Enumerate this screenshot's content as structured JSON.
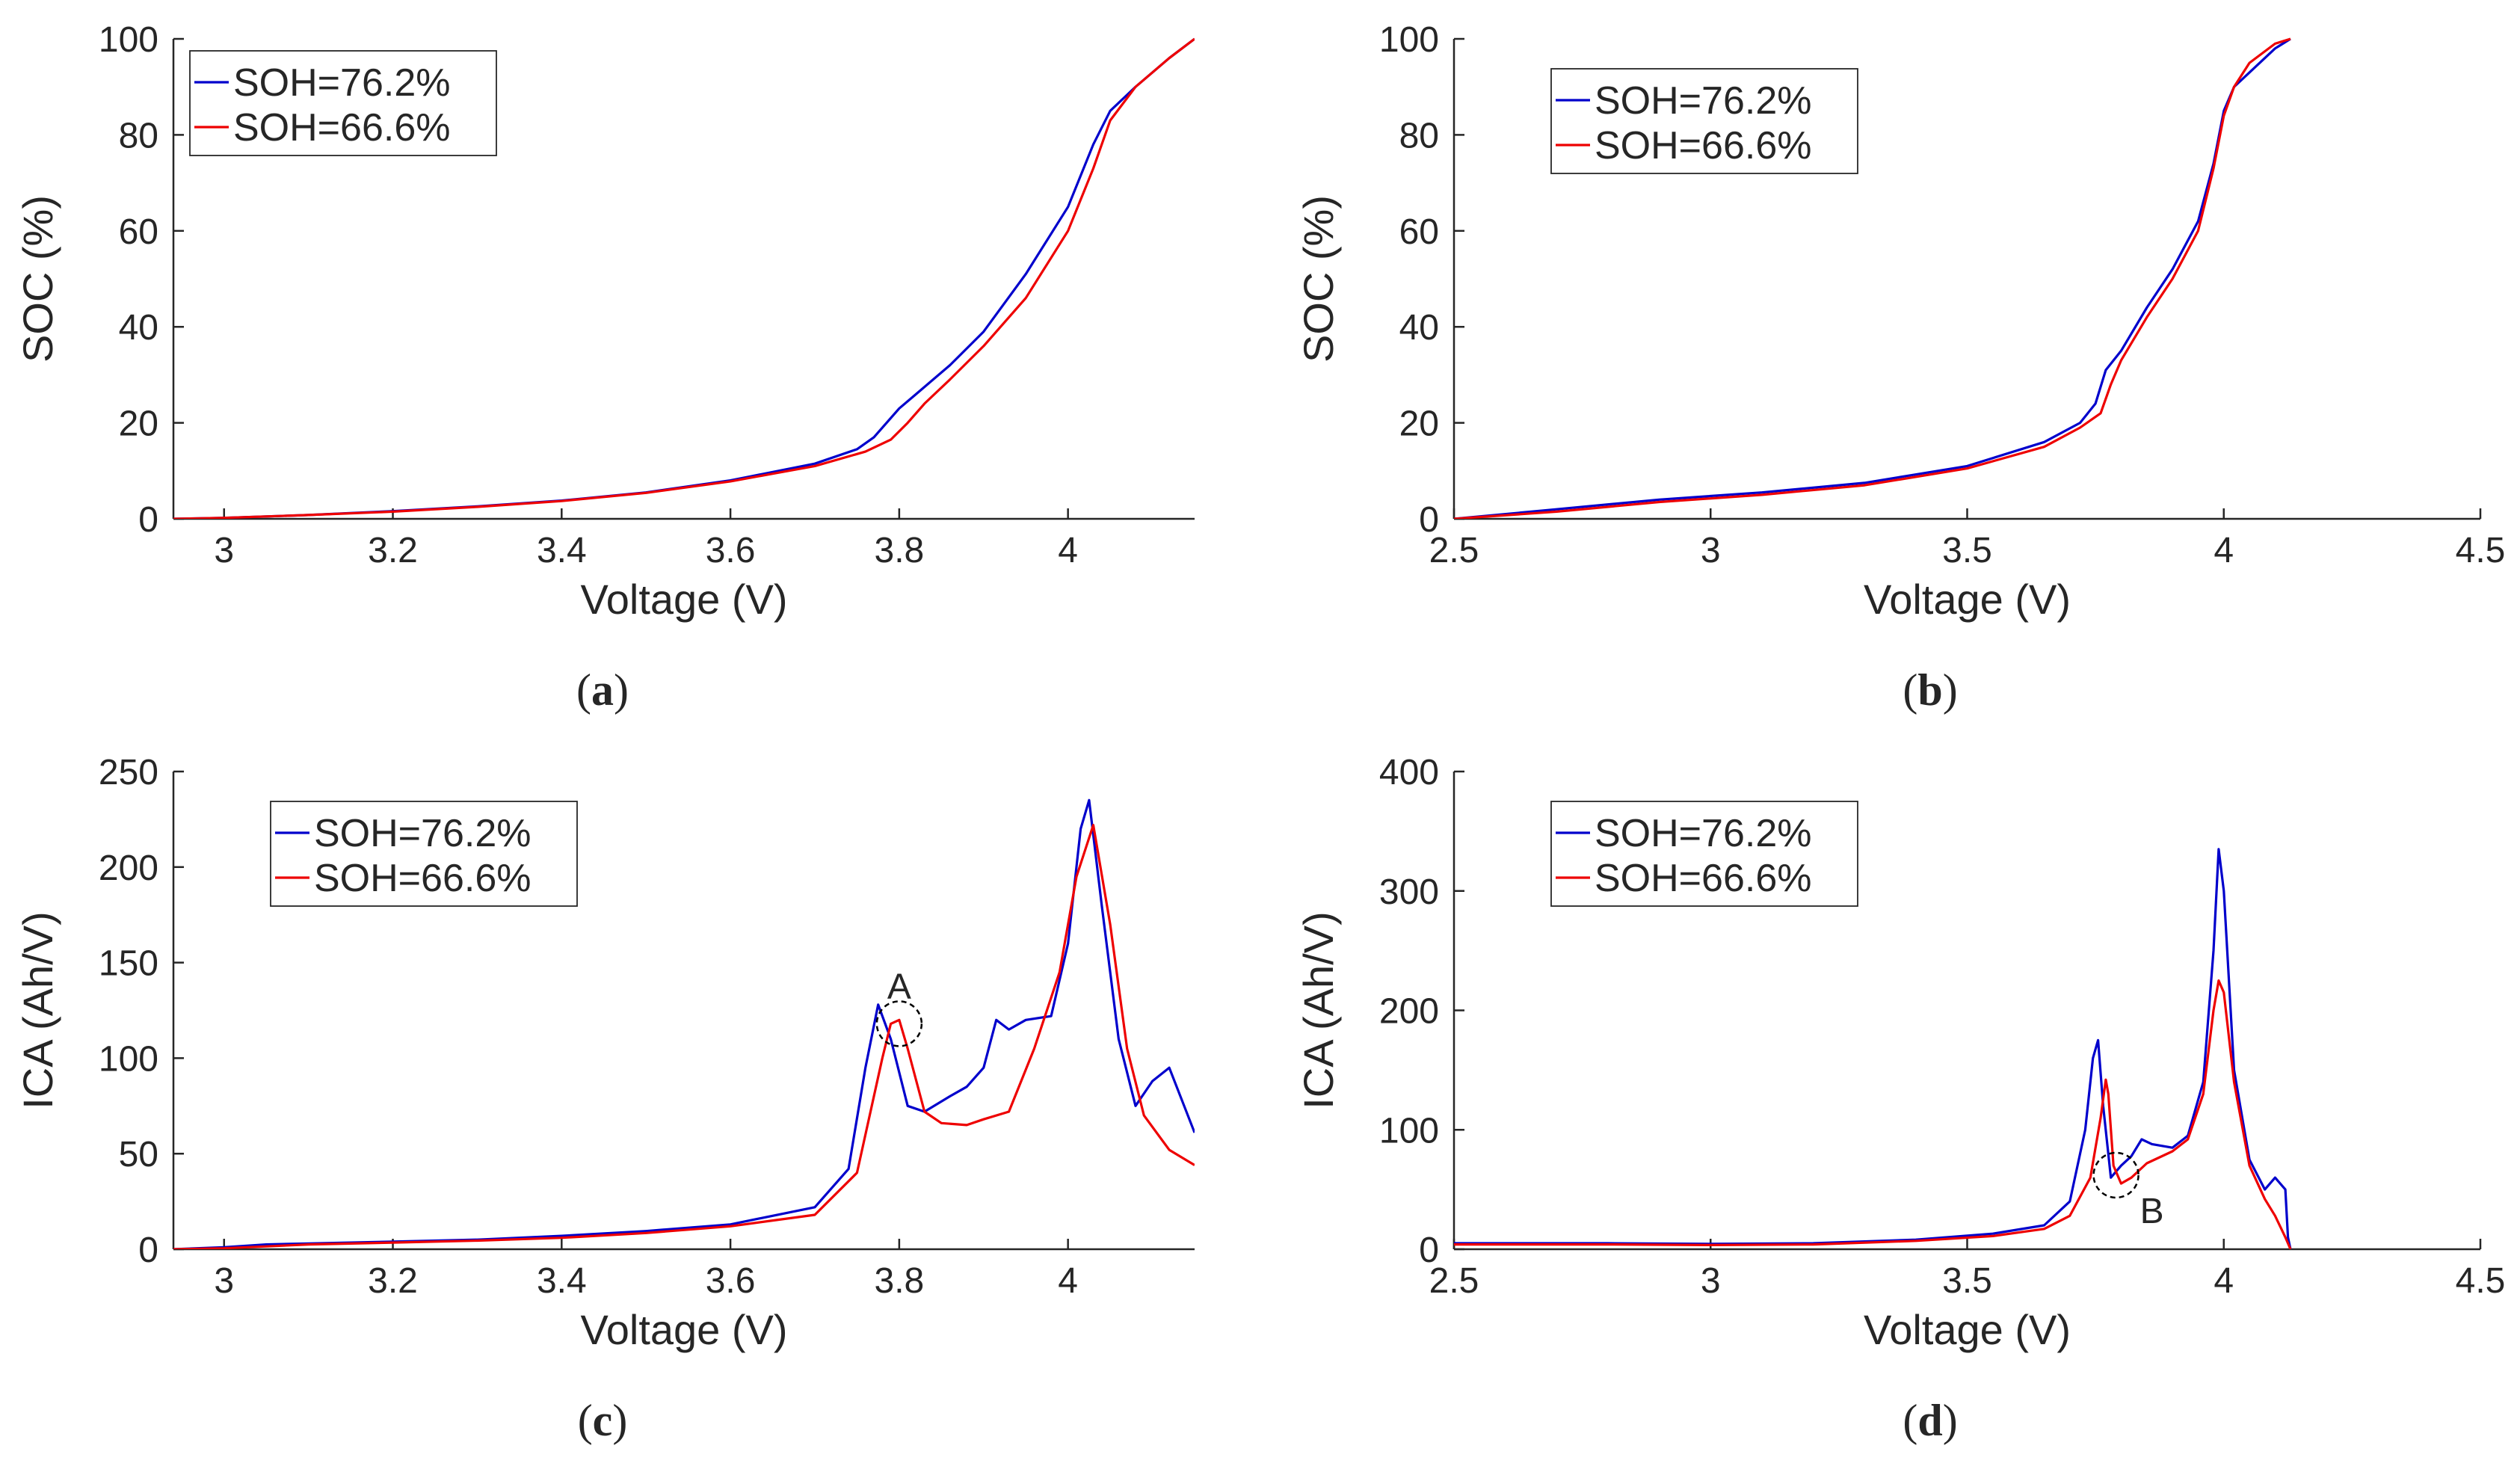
{
  "colors": {
    "series_blue": "#0000cc",
    "series_red": "#ee0000",
    "axis": "#262626",
    "annotation": "#000000"
  },
  "chart_data": [
    {
      "id": "a",
      "type": "line",
      "caption": "a",
      "title": "",
      "xlabel": "Voltage (V)",
      "ylabel": "SOC (%)",
      "xlim": [
        2.94,
        4.15
      ],
      "ylim": [
        0,
        100
      ],
      "xticks": [
        3,
        3.2,
        3.4,
        3.6,
        3.8,
        4
      ],
      "xtick_labels": [
        "3",
        "3.2",
        "3.4",
        "3.6",
        "3.8",
        "4"
      ],
      "yticks": [
        0,
        20,
        40,
        60,
        80,
        100
      ],
      "ytick_labels": [
        "0",
        "20",
        "40",
        "60",
        "80",
        "100"
      ],
      "legend": {
        "position": "top-left",
        "entries": [
          "SOH=76.2%",
          "SOH=66.6%"
        ]
      },
      "annotations": [],
      "series": [
        {
          "name": "SOH=76.2%",
          "color": "blue",
          "x": [
            2.94,
            3.0,
            3.1,
            3.2,
            3.3,
            3.4,
            3.5,
            3.6,
            3.7,
            3.75,
            3.77,
            3.79,
            3.8,
            3.82,
            3.86,
            3.9,
            3.95,
            4.0,
            4.03,
            4.05,
            4.08,
            4.12,
            4.15
          ],
          "y": [
            0,
            0.2,
            0.8,
            1.6,
            2.6,
            3.8,
            5.5,
            8,
            11.5,
            14.5,
            17,
            21,
            23,
            26,
            32,
            39,
            51,
            65,
            78,
            85,
            90,
            96,
            100
          ]
        },
        {
          "name": "SOH=66.6%",
          "color": "red",
          "x": [
            2.94,
            3.0,
            3.1,
            3.2,
            3.3,
            3.4,
            3.5,
            3.6,
            3.7,
            3.76,
            3.79,
            3.81,
            3.83,
            3.86,
            3.9,
            3.95,
            4.0,
            4.03,
            4.05,
            4.08,
            4.12,
            4.15
          ],
          "y": [
            0,
            0.2,
            0.8,
            1.5,
            2.5,
            3.7,
            5.4,
            7.8,
            11,
            14,
            16.5,
            20,
            24,
            29,
            36,
            46,
            60,
            73,
            83,
            90,
            96,
            100
          ]
        }
      ]
    },
    {
      "id": "b",
      "type": "line",
      "caption": "b",
      "title": "",
      "xlabel": "Voltage (V)",
      "ylabel": "SOC (%)",
      "xlim": [
        2.5,
        4.5
      ],
      "ylim": [
        0,
        100
      ],
      "xticks": [
        2.5,
        3,
        3.5,
        4,
        4.5
      ],
      "xtick_labels": [
        "2.5",
        "3",
        "3.5",
        "4",
        "4.5"
      ],
      "yticks": [
        0,
        20,
        40,
        60,
        80,
        100
      ],
      "ytick_labels": [
        "0",
        "20",
        "40",
        "60",
        "80",
        "100"
      ],
      "legend": {
        "position": "top-left",
        "entries": [
          "SOH=76.2%",
          "SOH=66.6%"
        ]
      },
      "annotations": [],
      "series": [
        {
          "name": "SOH=76.2%",
          "color": "blue",
          "x": [
            2.5,
            2.7,
            2.9,
            3.1,
            3.3,
            3.5,
            3.65,
            3.72,
            3.75,
            3.77,
            3.8,
            3.85,
            3.9,
            3.95,
            3.98,
            4.0,
            4.02,
            4.05,
            4.1,
            4.13
          ],
          "y": [
            0,
            2,
            4,
            5.5,
            7.5,
            11,
            16,
            20,
            24,
            31,
            35,
            44,
            52,
            62,
            74,
            85,
            90,
            93,
            98,
            100
          ]
        },
        {
          "name": "SOH=66.6%",
          "color": "red",
          "x": [
            2.5,
            2.7,
            2.9,
            3.1,
            3.3,
            3.5,
            3.65,
            3.72,
            3.76,
            3.78,
            3.8,
            3.85,
            3.9,
            3.95,
            3.98,
            4.0,
            4.02,
            4.05,
            4.1,
            4.13
          ],
          "y": [
            0,
            1.5,
            3.5,
            5,
            7,
            10.5,
            15,
            19,
            22,
            28,
            33,
            42,
            50,
            60,
            73,
            84,
            90,
            95,
            99,
            100
          ]
        }
      ]
    },
    {
      "id": "c",
      "type": "line",
      "caption": "c",
      "title": "",
      "xlabel": "Voltage (V)",
      "ylabel": "ICA (Ah/V)",
      "xlim": [
        2.94,
        4.15
      ],
      "ylim": [
        0,
        250
      ],
      "xticks": [
        3,
        3.2,
        3.4,
        3.6,
        3.8,
        4
      ],
      "xtick_labels": [
        "3",
        "3.2",
        "3.4",
        "3.6",
        "3.8",
        "4"
      ],
      "yticks": [
        0,
        50,
        100,
        150,
        200,
        250
      ],
      "ytick_labels": [
        "0",
        "50",
        "100",
        "150",
        "200",
        "250"
      ],
      "legend": {
        "position": "top-left",
        "entries": [
          "SOH=76.2%",
          "SOH=66.6%"
        ]
      },
      "annotations": [
        {
          "text": "A",
          "x": 3.8,
          "y": 118,
          "circle": true
        }
      ],
      "series": [
        {
          "name": "SOH=76.2%",
          "color": "blue",
          "x": [
            2.94,
            3.0,
            3.05,
            3.1,
            3.2,
            3.3,
            3.4,
            3.5,
            3.6,
            3.7,
            3.74,
            3.76,
            3.775,
            3.79,
            3.81,
            3.83,
            3.86,
            3.88,
            3.9,
            3.915,
            3.93,
            3.95,
            3.98,
            4.0,
            4.015,
            4.025,
            4.04,
            4.06,
            4.08,
            4.1,
            4.12,
            4.15
          ],
          "y": [
            0,
            1,
            2.5,
            3,
            4,
            5,
            7,
            9.5,
            13,
            22,
            42,
            95,
            128,
            110,
            75,
            72,
            80,
            85,
            95,
            120,
            115,
            120,
            122,
            160,
            220,
            235,
            180,
            110,
            75,
            88,
            95,
            61
          ]
        },
        {
          "name": "SOH=66.6%",
          "color": "red",
          "x": [
            2.94,
            3.0,
            3.05,
            3.1,
            3.2,
            3.3,
            3.4,
            3.5,
            3.6,
            3.7,
            3.75,
            3.78,
            3.79,
            3.8,
            3.81,
            3.83,
            3.85,
            3.88,
            3.9,
            3.93,
            3.96,
            3.99,
            4.01,
            4.03,
            4.05,
            4.07,
            4.09,
            4.12,
            4.15
          ],
          "y": [
            0,
            0.5,
            1.5,
            2.5,
            3.5,
            4.5,
            6,
            8.5,
            12,
            18,
            40,
            100,
            118,
            120,
            105,
            72,
            66,
            65,
            68,
            72,
            105,
            145,
            195,
            222,
            170,
            105,
            70,
            52,
            44
          ]
        }
      ]
    },
    {
      "id": "d",
      "type": "line",
      "caption": "d",
      "title": "",
      "xlabel": "Voltage (V)",
      "ylabel": "ICA (Ah/V)",
      "xlim": [
        2.5,
        4.5
      ],
      "ylim": [
        0,
        400
      ],
      "xticks": [
        2.5,
        3,
        3.5,
        4,
        4.5
      ],
      "xtick_labels": [
        "2.5",
        "3",
        "3.5",
        "4",
        "4.5"
      ],
      "yticks": [
        0,
        100,
        200,
        300,
        400
      ],
      "ytick_labels": [
        "0",
        "100",
        "200",
        "300",
        "400"
      ],
      "legend": {
        "position": "top-left",
        "entries": [
          "SOH=76.2%",
          "SOH=66.6%"
        ]
      },
      "annotations": [
        {
          "text": "B",
          "x": 3.79,
          "y": 62,
          "circle": true
        }
      ],
      "series": [
        {
          "name": "SOH=76.2%",
          "color": "blue",
          "x": [
            2.5,
            2.8,
            3.0,
            3.2,
            3.4,
            3.55,
            3.65,
            3.7,
            3.73,
            3.745,
            3.755,
            3.765,
            3.78,
            3.8,
            3.82,
            3.84,
            3.86,
            3.9,
            3.93,
            3.96,
            3.98,
            3.99,
            4.0,
            4.02,
            4.05,
            4.08,
            4.1,
            4.12,
            4.125,
            4.13
          ],
          "y": [
            5,
            5,
            4.5,
            5,
            8,
            13,
            20,
            40,
            100,
            160,
            175,
            120,
            60,
            70,
            78,
            92,
            88,
            85,
            95,
            140,
            250,
            335,
            300,
            150,
            75,
            50,
            60,
            50,
            10,
            0
          ]
        },
        {
          "name": "SOH=66.6%",
          "color": "red",
          "x": [
            2.5,
            2.8,
            3.0,
            3.2,
            3.4,
            3.55,
            3.65,
            3.7,
            3.74,
            3.76,
            3.77,
            3.775,
            3.785,
            3.8,
            3.82,
            3.85,
            3.9,
            3.93,
            3.96,
            3.98,
            3.99,
            4.0,
            4.02,
            4.05,
            4.08,
            4.1,
            4.12,
            4.13
          ],
          "y": [
            4,
            4,
            3.5,
            4,
            7,
            11,
            17,
            28,
            60,
            110,
            142,
            130,
            70,
            55,
            60,
            72,
            82,
            92,
            130,
            200,
            225,
            215,
            140,
            70,
            42,
            28,
            10,
            0
          ]
        }
      ]
    }
  ]
}
